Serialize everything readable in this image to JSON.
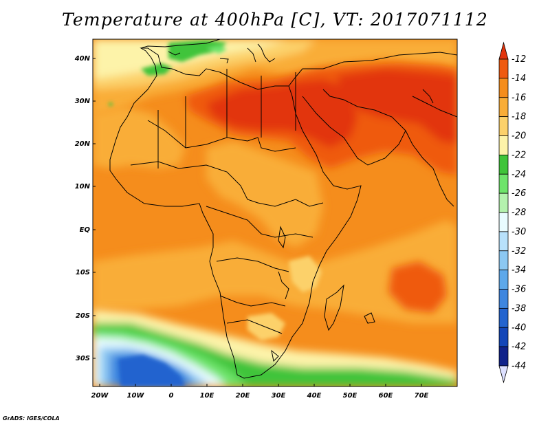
{
  "title": "Temperature at 400hPa [C], VT: 2017071112",
  "credit": "GrADS: IGES/COLA",
  "lat_labels": [
    "40N",
    "30N",
    "20N",
    "10N",
    "EQ",
    "10S",
    "20S",
    "30S"
  ],
  "lon_labels": [
    "20W",
    "10W",
    "0",
    "10E",
    "20E",
    "30E",
    "40E",
    "50E",
    "60E",
    "70E"
  ],
  "colorbar": {
    "labels": [
      "-12",
      "-14",
      "-16",
      "-18",
      "-20",
      "-22",
      "-24",
      "-26",
      "-28",
      "-30",
      "-32",
      "-34",
      "-36",
      "-38",
      "-40",
      "-42",
      "-44"
    ],
    "colors": [
      "#e2340c",
      "#ef5a10",
      "#f58d1c",
      "#f9ad38",
      "#fcd16b",
      "#fdf3a9",
      "#3fc43a",
      "#6ee46b",
      "#b4f2ae",
      "#e9fcff",
      "#b8e1fb",
      "#8cc8f2",
      "#5da8ea",
      "#3e86df",
      "#2364cf",
      "#1346b8",
      "#10228a"
    ]
  },
  "colors": {
    "hot": "#e2340c",
    "orange": "#f58d1c",
    "light_orange": "#f9ad38",
    "yellow": "#fdf3a9",
    "green": "#3fc43a",
    "blue": "#3e86df",
    "border": "#000000"
  }
}
